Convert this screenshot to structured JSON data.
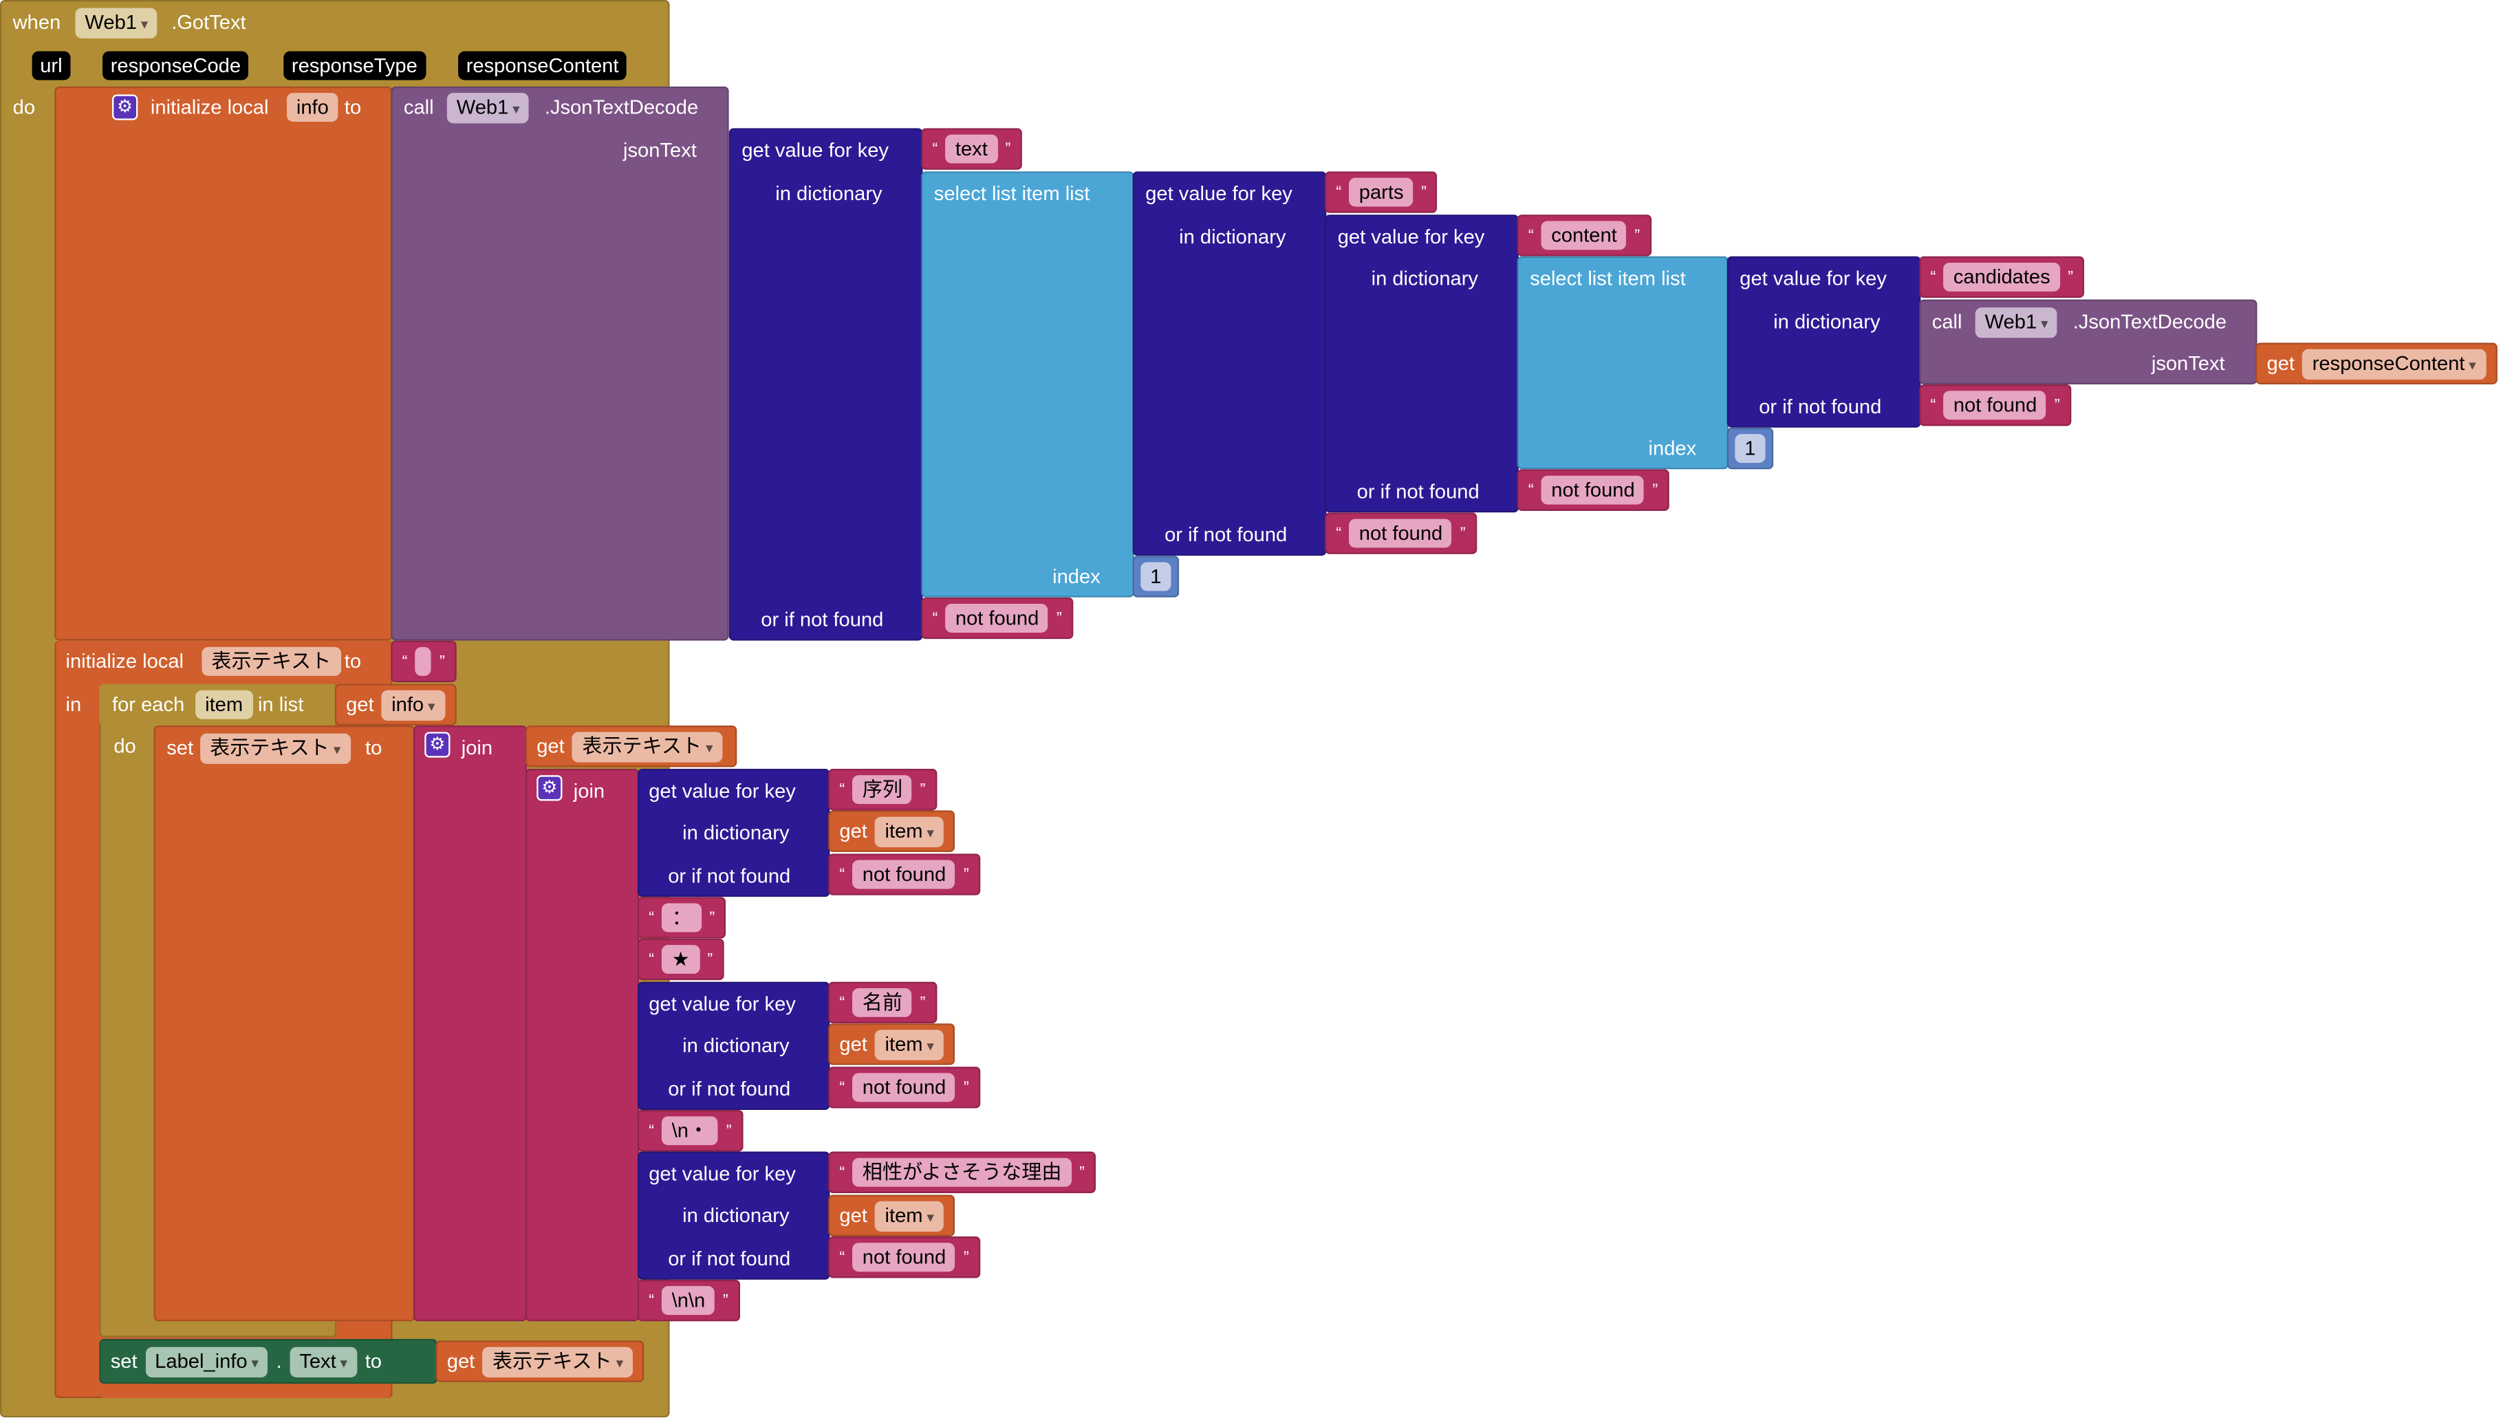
{
  "event": {
    "when": "when",
    "component": "Web1",
    "event": ".GotText",
    "params": [
      "url",
      "responseCode",
      "responseType",
      "responseContent"
    ],
    "do": "do"
  },
  "init1": {
    "label": "initialize local",
    "var": "info",
    "to": "to"
  },
  "call1": {
    "call": "call",
    "component": "Web1",
    "method": ".JsonTextDecode",
    "arg": "jsonText"
  },
  "call2": {
    "call": "call",
    "component": "Web1",
    "method": ".JsonTextDecode",
    "arg": "jsonText",
    "get": "get",
    "var": "responseContent"
  },
  "dict": {
    "get_key": "get value for key",
    "in_dict": "in dictionary",
    "or_not_found": "or if not found"
  },
  "select": {
    "label": "select list item  list",
    "index": "index"
  },
  "q": {
    "open": "“",
    "close": "”"
  },
  "strings": {
    "text": "text",
    "parts": "parts",
    "content": "content",
    "candidates": "candidates",
    "not_found": "not found",
    "index1": "1",
    "index2": "1",
    "empty": "",
    "colon": "：",
    "star": "★",
    "newline_dot": "\\n・",
    "double_newline": "\\n\\n",
    "key1": "序列",
    "key2": "名前",
    "key3": "相性がよさそうな理由"
  },
  "init2": {
    "label": "initialize local",
    "var": "表示テキスト",
    "to": "to",
    "in": "in"
  },
  "foreach": {
    "label": "for each",
    "var": "item",
    "in_list": "in list",
    "get": "get",
    "list_var": "info",
    "do": "do"
  },
  "set1": {
    "set": "set",
    "var": "表示テキスト",
    "to": "to",
    "join": "join",
    "get": "get",
    "get_var": "表示テキスト",
    "join2": "join",
    "get_item": "get",
    "item": "item"
  },
  "set2": {
    "set": "set",
    "component": "Label_info",
    "dot": ".",
    "property": "Text",
    "to": "to",
    "get": "get",
    "var": "表示テキスト"
  },
  "colors": {
    "event": "#b18e35",
    "variables": "#d05f2d",
    "component": "#7c5385",
    "dictionary": "#2c1a94",
    "list": "#4ba6d6",
    "text": "#b32d5e",
    "setter": "#266643"
  }
}
